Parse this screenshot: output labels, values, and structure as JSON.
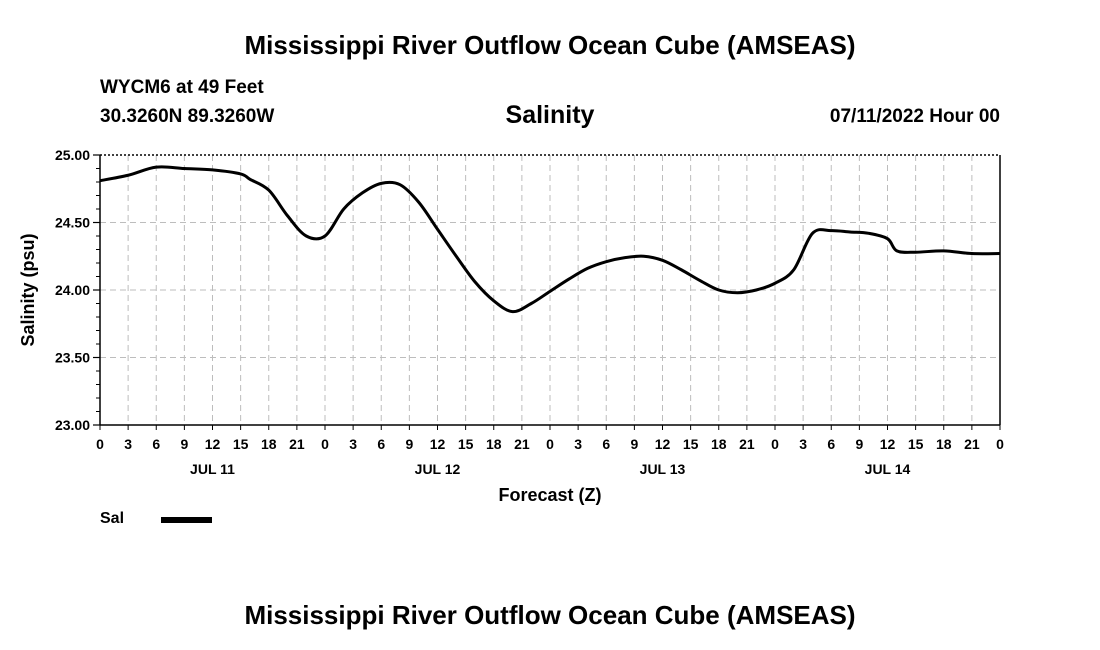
{
  "header": {
    "title": "Mississippi River Outflow Ocean Cube (AMSEAS)",
    "station": "WYCM6 at 49 Feet",
    "coordinates": "30.3260N  89.3260W",
    "chart_title": "Salinity",
    "datetime": "07/11/2022 Hour 00"
  },
  "legend": {
    "label": "Sal"
  },
  "footer": {
    "title": "Mississippi River Outflow Ocean Cube (AMSEAS)"
  },
  "chart_data": {
    "type": "line",
    "title": "Salinity",
    "xlabel": "Forecast (Z)",
    "ylabel": "Salinity (psu)",
    "ylim": [
      23.0,
      25.0
    ],
    "xlim": [
      0,
      96
    ],
    "grid": true,
    "y_ticks": [
      "23.00",
      "23.50",
      "24.00",
      "24.50",
      "25.00"
    ],
    "x_ticks": [
      "0",
      "3",
      "6",
      "9",
      "12",
      "15",
      "18",
      "21",
      "0",
      "3",
      "6",
      "9",
      "12",
      "15",
      "18",
      "21",
      "0",
      "3",
      "6",
      "9",
      "12",
      "15",
      "18",
      "21",
      "0",
      "3",
      "6",
      "9",
      "12",
      "15",
      "18",
      "21",
      "0"
    ],
    "day_labels": [
      "JUL 11",
      "JUL 12",
      "JUL 13",
      "JUL 14"
    ],
    "series": [
      {
        "name": "Sal",
        "x": [
          0,
          3,
          6,
          9,
          12,
          15,
          16,
          18,
          20,
          22,
          24,
          26,
          28,
          30,
          32,
          34,
          36,
          38,
          40,
          42,
          44,
          46,
          48,
          50,
          52,
          54,
          56,
          58,
          60,
          62,
          64,
          66,
          68,
          70,
          72,
          74,
          76,
          78,
          80,
          82,
          84,
          85,
          87,
          90,
          93,
          96
        ],
        "y": [
          24.81,
          24.85,
          24.91,
          24.9,
          24.89,
          24.86,
          24.82,
          24.74,
          24.55,
          24.4,
          24.4,
          24.6,
          24.72,
          24.79,
          24.78,
          24.65,
          24.45,
          24.25,
          24.06,
          23.92,
          23.84,
          23.9,
          23.99,
          24.08,
          24.16,
          24.21,
          24.24,
          24.25,
          24.22,
          24.15,
          24.07,
          24.0,
          23.98,
          24.0,
          24.05,
          24.15,
          24.42,
          24.44,
          24.43,
          24.42,
          24.38,
          24.29,
          24.28,
          24.29,
          24.27,
          24.27
        ]
      }
    ]
  }
}
